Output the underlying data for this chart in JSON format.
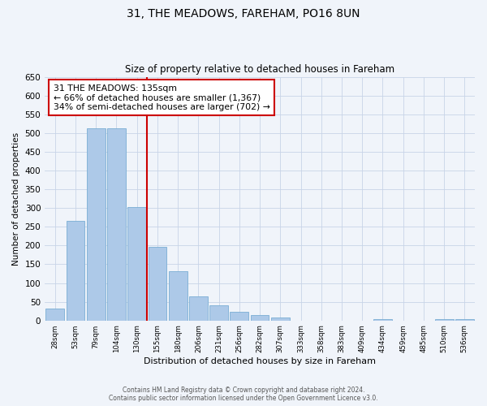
{
  "title": "31, THE MEADOWS, FAREHAM, PO16 8UN",
  "subtitle": "Size of property relative to detached houses in Fareham",
  "xlabel": "Distribution of detached houses by size in Fareham",
  "ylabel": "Number of detached properties",
  "bar_labels": [
    "28sqm",
    "53sqm",
    "79sqm",
    "104sqm",
    "130sqm",
    "155sqm",
    "180sqm",
    "206sqm",
    "231sqm",
    "256sqm",
    "282sqm",
    "307sqm",
    "333sqm",
    "358sqm",
    "383sqm",
    "409sqm",
    "434sqm",
    "459sqm",
    "485sqm",
    "510sqm",
    "536sqm"
  ],
  "bar_values": [
    32,
    265,
    512,
    512,
    302,
    197,
    131,
    65,
    40,
    23,
    14,
    8,
    0,
    0,
    0,
    0,
    3,
    0,
    0,
    3,
    3
  ],
  "bar_color": "#adc9e8",
  "bar_edge_color": "#7aadd4",
  "ylim": [
    0,
    650
  ],
  "yticks": [
    0,
    50,
    100,
    150,
    200,
    250,
    300,
    350,
    400,
    450,
    500,
    550,
    600,
    650
  ],
  "property_line_color": "#cc0000",
  "annotation_box_text": "31 THE MEADOWS: 135sqm\n← 66% of detached houses are smaller (1,367)\n34% of semi-detached houses are larger (702) →",
  "annotation_box_color": "#cc0000",
  "footer_line1": "Contains HM Land Registry data © Crown copyright and database right 2024.",
  "footer_line2": "Contains public sector information licensed under the Open Government Licence v3.0.",
  "background_color": "#f0f4fa",
  "grid_color": "#c8d4e8"
}
